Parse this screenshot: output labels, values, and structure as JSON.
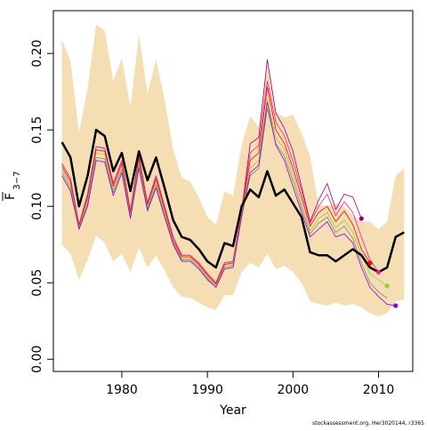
{
  "chart_data": {
    "type": "line",
    "title": "",
    "xlabel": "Year",
    "ylabel": "F 3−7",
    "ylabel_main": "F",
    "ylabel_sub": "3−7",
    "xlim": [
      1972,
      2014
    ],
    "ylim": [
      -0.008,
      0.228
    ],
    "x_ticks": [
      1980,
      1990,
      2000,
      2010
    ],
    "y_ticks": [
      0.0,
      0.05,
      0.1,
      0.15,
      0.2
    ],
    "x_tick_labels": [
      "1980",
      "1990",
      "2000",
      "2010"
    ],
    "y_tick_labels": [
      "0.00",
      "0.05",
      "0.10",
      "0.15",
      "0.20"
    ],
    "grid": false,
    "legend": "none",
    "caption": "stockassessment.org, Her3020144, r3365",
    "band": {
      "color": "#f5deb3",
      "x": [
        1973,
        1974,
        1975,
        1976,
        1977,
        1978,
        1979,
        1980,
        1981,
        1982,
        1983,
        1984,
        1985,
        1986,
        1987,
        1988,
        1989,
        1990,
        1991,
        1992,
        1993,
        1994,
        1995,
        1996,
        1997,
        1998,
        1999,
        2000,
        2001,
        2002,
        2003,
        2004,
        2005,
        2006,
        2007,
        2008,
        2009,
        2010,
        2011,
        2012,
        2013
      ],
      "upper": [
        0.209,
        0.195,
        0.148,
        0.177,
        0.219,
        0.215,
        0.182,
        0.197,
        0.165,
        0.212,
        0.174,
        0.196,
        0.17,
        0.137,
        0.119,
        0.116,
        0.106,
        0.093,
        0.088,
        0.11,
        0.107,
        0.14,
        0.159,
        0.152,
        0.193,
        0.162,
        0.158,
        0.16,
        0.148,
        0.133,
        0.101,
        0.1,
        0.102,
        0.1,
        0.094,
        0.09,
        0.09,
        0.085,
        0.09,
        0.12,
        0.125
      ],
      "lower": [
        0.075,
        0.069,
        0.052,
        0.065,
        0.081,
        0.076,
        0.064,
        0.069,
        0.057,
        0.073,
        0.06,
        0.068,
        0.058,
        0.047,
        0.041,
        0.04,
        0.037,
        0.034,
        0.032,
        0.042,
        0.042,
        0.057,
        0.063,
        0.06,
        0.069,
        0.059,
        0.061,
        0.057,
        0.05,
        0.038,
        0.036,
        0.035,
        0.037,
        0.035,
        0.036,
        0.034,
        0.03,
        0.028,
        0.03,
        0.038,
        0.039
      ]
    },
    "series": [
      {
        "color": "#000000",
        "width": 2.5,
        "x": [
          1973,
          1974,
          1975,
          1976,
          1977,
          1978,
          1979,
          1980,
          1981,
          1982,
          1983,
          1984,
          1985,
          1986,
          1987,
          1988,
          1989,
          1990,
          1991,
          1992,
          1993,
          1994,
          1995,
          1996,
          1997,
          1998,
          1999,
          2000,
          2001,
          2002,
          2003,
          2004,
          2005,
          2006,
          2007,
          2008,
          2009,
          2010,
          2011,
          2012,
          2013
        ],
        "y": [
          0.142,
          0.132,
          0.1,
          0.12,
          0.15,
          0.146,
          0.123,
          0.135,
          0.11,
          0.136,
          0.117,
          0.132,
          0.112,
          0.091,
          0.08,
          0.078,
          0.072,
          0.064,
          0.06,
          0.076,
          0.074,
          0.1,
          0.111,
          0.106,
          0.123,
          0.107,
          0.111,
          0.102,
          0.093,
          0.07,
          0.068,
          0.068,
          0.064,
          0.068,
          0.072,
          0.068,
          0.06,
          0.057,
          0.06,
          0.08,
          0.083
        ]
      },
      {
        "color": "#8b008b",
        "width": 0.8,
        "end_point": true,
        "x": [
          1973,
          1974,
          1975,
          1976,
          1977,
          1978,
          1979,
          1980,
          1981,
          1982,
          1983,
          1984,
          1985,
          1986,
          1987,
          1988,
          1989,
          1990,
          1991,
          1992,
          1993,
          1994,
          1995,
          1996,
          1997,
          1998,
          1999,
          2000,
          2001,
          2002,
          2003,
          2004,
          2005,
          2006,
          2007,
          2008
        ],
        "y": [
          0.128,
          0.118,
          0.088,
          0.108,
          0.139,
          0.138,
          0.115,
          0.13,
          0.097,
          0.133,
          0.102,
          0.12,
          0.1,
          0.08,
          0.068,
          0.068,
          0.063,
          0.056,
          0.05,
          0.063,
          0.064,
          0.097,
          0.141,
          0.145,
          0.196,
          0.161,
          0.151,
          0.136,
          0.113,
          0.09,
          0.104,
          0.115,
          0.098,
          0.108,
          0.106,
          0.092
        ]
      },
      {
        "color": "#ff1493",
        "width": 0.8,
        "end_point": true,
        "x": [
          1973,
          1974,
          1975,
          1976,
          1977,
          1978,
          1979,
          1980,
          1981,
          1982,
          1983,
          1984,
          1985,
          1986,
          1987,
          1988,
          1989,
          1990,
          1991,
          1992,
          1993,
          1994,
          1995,
          1996,
          1997,
          1998,
          1999,
          2000,
          2001,
          2002,
          2003,
          2004,
          2005,
          2006,
          2007,
          2008,
          2009,
          2010
        ],
        "y": [
          0.128,
          0.118,
          0.088,
          0.108,
          0.139,
          0.138,
          0.115,
          0.13,
          0.097,
          0.133,
          0.102,
          0.12,
          0.1,
          0.08,
          0.068,
          0.068,
          0.063,
          0.056,
          0.05,
          0.063,
          0.064,
          0.097,
          0.135,
          0.14,
          0.182,
          0.155,
          0.146,
          0.13,
          0.11,
          0.089,
          0.1,
          0.108,
          0.094,
          0.103,
          0.096,
          0.08,
          0.065,
          0.057
        ]
      },
      {
        "color": "#ff0000",
        "width": 0.8,
        "end_point": true,
        "x": [
          1973,
          1974,
          1975,
          1976,
          1977,
          1978,
          1979,
          1980,
          1981,
          1982,
          1983,
          1984,
          1985,
          1986,
          1987,
          1988,
          1989,
          1990,
          1991,
          1992,
          1993,
          1994,
          1995,
          1996,
          1997,
          1998,
          1999,
          2000,
          2001,
          2002,
          2003,
          2004,
          2005,
          2006,
          2007,
          2008,
          2009
        ],
        "y": [
          0.126,
          0.116,
          0.087,
          0.106,
          0.137,
          0.136,
          0.113,
          0.128,
          0.096,
          0.131,
          0.101,
          0.118,
          0.098,
          0.078,
          0.067,
          0.067,
          0.062,
          0.055,
          0.049,
          0.062,
          0.063,
          0.096,
          0.13,
          0.135,
          0.178,
          0.15,
          0.141,
          0.125,
          0.106,
          0.087,
          0.096,
          0.1,
          0.09,
          0.097,
          0.088,
          0.072,
          0.063
        ]
      },
      {
        "color": "#9acd32",
        "width": 0.8,
        "end_point": true,
        "x": [
          1973,
          1974,
          1975,
          1976,
          1977,
          1978,
          1979,
          1980,
          1981,
          1982,
          1983,
          1984,
          1985,
          1986,
          1987,
          1988,
          1989,
          1990,
          1991,
          1992,
          1993,
          1994,
          1995,
          1996,
          1997,
          1998,
          1999,
          2000,
          2001,
          2002,
          2003,
          2004,
          2005,
          2006,
          2007,
          2008,
          2009,
          2010,
          2011
        ],
        "y": [
          0.124,
          0.114,
          0.086,
          0.104,
          0.135,
          0.134,
          0.111,
          0.126,
          0.094,
          0.129,
          0.099,
          0.116,
          0.096,
          0.077,
          0.066,
          0.066,
          0.061,
          0.054,
          0.048,
          0.061,
          0.062,
          0.095,
          0.125,
          0.13,
          0.17,
          0.145,
          0.137,
          0.121,
          0.102,
          0.084,
          0.092,
          0.096,
          0.086,
          0.091,
          0.083,
          0.068,
          0.056,
          0.052,
          0.048
        ]
      },
      {
        "color": "#808080",
        "width": 0.8,
        "end_point": false,
        "x": [
          1973,
          1974,
          1975,
          1976,
          1977,
          1978,
          1979,
          1980,
          1981,
          1982,
          1983,
          1984,
          1985,
          1986,
          1987,
          1988,
          1989,
          1990,
          1991,
          1992,
          1993,
          1994,
          1995,
          1996,
          1997,
          1998,
          1999,
          2000,
          2001,
          2002,
          2003,
          2004,
          2005,
          2006,
          2007,
          2008,
          2009,
          2010,
          2011
        ],
        "y": [
          0.122,
          0.112,
          0.085,
          0.102,
          0.132,
          0.131,
          0.109,
          0.124,
          0.093,
          0.127,
          0.098,
          0.114,
          0.094,
          0.076,
          0.065,
          0.065,
          0.06,
          0.053,
          0.047,
          0.06,
          0.061,
          0.094,
          0.12,
          0.125,
          0.164,
          0.141,
          0.133,
          0.117,
          0.099,
          0.082,
          0.089,
          0.093,
          0.083,
          0.087,
          0.079,
          0.063,
          0.05,
          0.044,
          0.04
        ]
      },
      {
        "color": "#9400d3",
        "width": 0.8,
        "end_point": true,
        "x": [
          1973,
          1974,
          1975,
          1976,
          1977,
          1978,
          1979,
          1980,
          1981,
          1982,
          1983,
          1984,
          1985,
          1986,
          1987,
          1988,
          1989,
          1990,
          1991,
          1992,
          1993,
          1994,
          1995,
          1996,
          1997,
          1998,
          1999,
          2000,
          2001,
          2002,
          2003,
          2004,
          2005,
          2006,
          2007,
          2008,
          2009,
          2010,
          2011,
          2012
        ],
        "y": [
          0.12,
          0.11,
          0.085,
          0.1,
          0.13,
          0.129,
          0.107,
          0.122,
          0.092,
          0.125,
          0.097,
          0.112,
          0.093,
          0.075,
          0.064,
          0.064,
          0.059,
          0.052,
          0.047,
          0.059,
          0.06,
          0.093,
          0.122,
          0.127,
          0.168,
          0.14,
          0.13,
          0.113,
          0.096,
          0.08,
          0.085,
          0.09,
          0.08,
          0.082,
          0.076,
          0.06,
          0.047,
          0.041,
          0.036,
          0.035
        ]
      }
    ]
  }
}
